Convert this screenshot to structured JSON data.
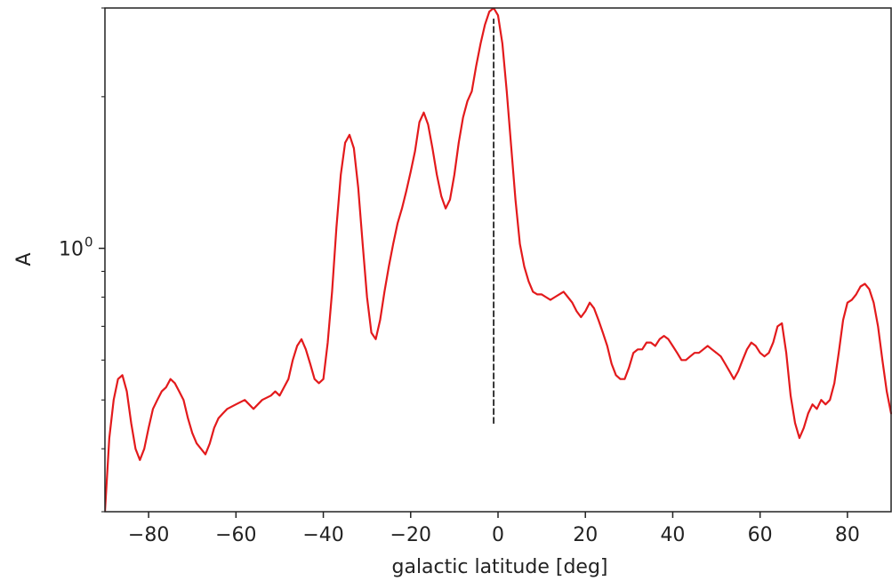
{
  "chart_data": {
    "type": "line",
    "title": "",
    "xlabel": "galactic latitude [deg]",
    "ylabel": "A",
    "xscale": "linear",
    "yscale": "log",
    "xlim": [
      -90,
      90
    ],
    "ylim": [
      0.3,
      3.0
    ],
    "grid": false,
    "legend": "none",
    "x_ticks": [
      {
        "value": -80,
        "label": "−80"
      },
      {
        "value": -60,
        "label": "−60"
      },
      {
        "value": -40,
        "label": "−40"
      },
      {
        "value": -20,
        "label": "−20"
      },
      {
        "value": 0,
        "label": "0"
      },
      {
        "value": 20,
        "label": "20"
      },
      {
        "value": 40,
        "label": "40"
      },
      {
        "value": 60,
        "label": "60"
      },
      {
        "value": 80,
        "label": "80"
      }
    ],
    "y_ticks": [
      {
        "value": 1.0,
        "label": "10",
        "exponent": "0"
      }
    ],
    "y_minor_ticks": [
      0.3,
      0.4,
      0.5,
      0.6,
      0.7,
      0.8,
      0.9,
      2.0,
      3.0
    ],
    "series": [
      {
        "color": "#e31a1c",
        "style": "solid",
        "x": [
          -90,
          -89,
          -88,
          -87,
          -86,
          -85,
          -84,
          -83,
          -82,
          -81,
          -80,
          -79,
          -78,
          -77,
          -76,
          -75,
          -74,
          -73,
          -72,
          -71,
          -70,
          -69,
          -68,
          -67,
          -66,
          -65,
          -64,
          -63,
          -62,
          -60,
          -58,
          -57,
          -56,
          -54,
          -52,
          -51,
          -50,
          -49,
          -48,
          -47,
          -46,
          -45,
          -44,
          -43,
          -42,
          -41,
          -40,
          -39,
          -38,
          -37,
          -36,
          -35,
          -34,
          -33,
          -32,
          -31,
          -30,
          -29,
          -28,
          -27,
          -26,
          -25,
          -24,
          -23,
          -22,
          -21,
          -20,
          -19,
          -18,
          -17,
          -16,
          -15,
          -14,
          -13,
          -12,
          -11,
          -10,
          -9,
          -8,
          -7,
          -6,
          -5,
          -4,
          -3,
          -2,
          -1,
          0,
          1,
          2,
          3,
          4,
          5,
          6,
          7,
          8,
          9,
          10,
          11,
          12,
          13,
          14,
          15,
          16,
          17,
          18,
          19,
          20,
          21,
          22,
          23,
          24,
          25,
          26,
          27,
          28,
          29,
          30,
          31,
          32,
          33,
          34,
          35,
          36,
          37,
          38,
          39,
          40,
          41,
          42,
          43,
          44,
          45,
          46,
          47,
          48,
          49,
          50,
          51,
          52,
          53,
          54,
          55,
          56,
          57,
          58,
          59,
          60,
          61,
          62,
          63,
          64,
          65,
          66,
          67,
          68,
          69,
          70,
          71,
          72,
          73,
          74,
          75,
          76,
          77,
          78,
          79,
          80,
          81,
          82,
          83,
          84,
          85,
          86,
          87,
          88,
          89,
          90
        ],
        "y": [
          0.3,
          0.42,
          0.5,
          0.55,
          0.56,
          0.52,
          0.45,
          0.4,
          0.38,
          0.4,
          0.44,
          0.48,
          0.5,
          0.52,
          0.53,
          0.55,
          0.54,
          0.52,
          0.5,
          0.46,
          0.43,
          0.41,
          0.4,
          0.39,
          0.41,
          0.44,
          0.46,
          0.47,
          0.48,
          0.49,
          0.5,
          0.49,
          0.48,
          0.5,
          0.51,
          0.52,
          0.51,
          0.53,
          0.55,
          0.6,
          0.64,
          0.66,
          0.63,
          0.59,
          0.55,
          0.54,
          0.55,
          0.65,
          0.82,
          1.1,
          1.4,
          1.62,
          1.68,
          1.58,
          1.32,
          1.02,
          0.8,
          0.68,
          0.66,
          0.72,
          0.82,
          0.92,
          1.02,
          1.12,
          1.2,
          1.3,
          1.42,
          1.56,
          1.78,
          1.86,
          1.76,
          1.58,
          1.4,
          1.27,
          1.2,
          1.25,
          1.4,
          1.62,
          1.82,
          1.96,
          2.05,
          2.3,
          2.55,
          2.78,
          2.95,
          3.0,
          2.9,
          2.55,
          2.05,
          1.6,
          1.25,
          1.02,
          0.92,
          0.86,
          0.82,
          0.81,
          0.81,
          0.8,
          0.79,
          0.8,
          0.81,
          0.82,
          0.8,
          0.78,
          0.75,
          0.73,
          0.75,
          0.78,
          0.76,
          0.72,
          0.68,
          0.64,
          0.59,
          0.56,
          0.55,
          0.55,
          0.58,
          0.62,
          0.63,
          0.63,
          0.65,
          0.65,
          0.64,
          0.66,
          0.67,
          0.66,
          0.64,
          0.62,
          0.6,
          0.6,
          0.61,
          0.62,
          0.62,
          0.63,
          0.64,
          0.63,
          0.62,
          0.61,
          0.59,
          0.57,
          0.55,
          0.57,
          0.6,
          0.63,
          0.65,
          0.64,
          0.62,
          0.61,
          0.62,
          0.65,
          0.7,
          0.71,
          0.62,
          0.51,
          0.45,
          0.42,
          0.44,
          0.47,
          0.49,
          0.48,
          0.5,
          0.49,
          0.5,
          0.54,
          0.62,
          0.72,
          0.78,
          0.79,
          0.81,
          0.84,
          0.85,
          0.83,
          0.78,
          0.7,
          0.6,
          0.52,
          0.47
        ],
        "name": ""
      },
      {
        "color": "#222222",
        "style": "dashed",
        "x": [
          -1,
          -1
        ],
        "y": [
          0.45,
          2.85
        ],
        "name": ""
      }
    ]
  }
}
